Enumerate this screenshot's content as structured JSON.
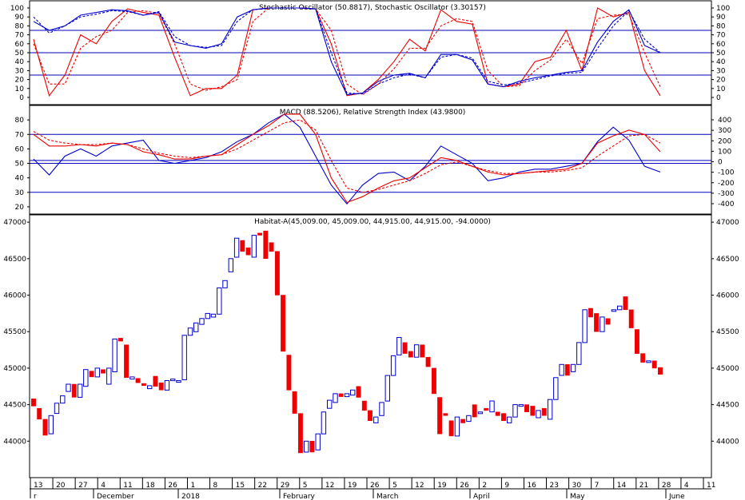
{
  "colors": {
    "up": "#0000cc",
    "down": "#ee0000",
    "grid": "#0000bb",
    "frame": "#000000"
  },
  "chart_data": [
    {
      "type": "line",
      "title": "Stochastic Oscillator (50.8817), Stochastic Oscillator (3.30157)",
      "ylim": [
        0,
        100
      ],
      "ticks": [
        0,
        10,
        20,
        30,
        40,
        50,
        60,
        70,
        80,
        90,
        100
      ],
      "hlines": [
        25,
        50,
        75
      ],
      "series": [
        {
          "color": "red",
          "style": "solid",
          "values": [
            65,
            2,
            25,
            70,
            60,
            85,
            99,
            95,
            92,
            45,
            2,
            10,
            10,
            25,
            98,
            100,
            100,
            100,
            99,
            60,
            2,
            5,
            20,
            40,
            65,
            52,
            98,
            85,
            82,
            15,
            12,
            15,
            40,
            45,
            75,
            30,
            100,
            90,
            95,
            30,
            2
          ]
        },
        {
          "color": "red",
          "style": "dashed",
          "values": [
            60,
            15,
            15,
            55,
            68,
            75,
            95,
            97,
            94,
            60,
            15,
            8,
            12,
            20,
            85,
            100,
            100,
            100,
            99,
            75,
            15,
            3,
            15,
            32,
            55,
            55,
            80,
            88,
            85,
            30,
            12,
            13,
            30,
            42,
            65,
            38,
            88,
            92,
            93,
            50,
            12
          ]
        },
        {
          "color": "blue",
          "style": "solid",
          "values": [
            85,
            75,
            80,
            92,
            95,
            98,
            97,
            92,
            95,
            62,
            58,
            55,
            60,
            90,
            98,
            100,
            100,
            100,
            99,
            40,
            3,
            5,
            18,
            25,
            27,
            22,
            48,
            48,
            42,
            15,
            12,
            18,
            22,
            25,
            28,
            30,
            62,
            85,
            98,
            58,
            50
          ]
        },
        {
          "color": "blue",
          "style": "dashed",
          "values": [
            90,
            72,
            80,
            90,
            93,
            97,
            96,
            92,
            96,
            68,
            58,
            56,
            58,
            85,
            98,
            100,
            100,
            100,
            99,
            50,
            5,
            4,
            15,
            22,
            26,
            22,
            45,
            48,
            44,
            18,
            14,
            16,
            20,
            24,
            27,
            28,
            55,
            80,
            97,
            65,
            50
          ]
        }
      ]
    },
    {
      "type": "line",
      "title": "MACD (88.5206), Relative Strength Index (43.9800)",
      "ylim": [
        15,
        90
      ],
      "ticks": [
        20,
        30,
        40,
        50,
        60,
        70,
        80
      ],
      "right_ticks": [
        400,
        300,
        200,
        100,
        0,
        -100,
        -200,
        -300,
        -400
      ],
      "hlines": [
        30,
        50,
        52,
        70
      ],
      "series": [
        {
          "color": "blue",
          "style": "solid",
          "values": [
            53,
            42,
            55,
            60,
            55,
            62,
            64,
            66,
            52,
            50,
            52,
            54,
            58,
            65,
            70,
            78,
            84,
            75,
            55,
            35,
            22,
            35,
            43,
            44,
            38,
            48,
            62,
            56,
            50,
            38,
            40,
            44,
            46,
            46,
            48,
            50,
            65,
            75,
            66,
            48,
            44
          ]
        },
        {
          "color": "red",
          "style": "solid",
          "values": [
            70,
            62,
            62,
            63,
            62,
            64,
            63,
            58,
            56,
            53,
            53,
            55,
            56,
            63,
            70,
            76,
            84,
            84,
            70,
            40,
            23,
            27,
            33,
            38,
            40,
            47,
            54,
            52,
            48,
            44,
            42,
            43,
            44,
            45,
            46,
            50,
            64,
            69,
            73,
            70,
            58
          ]
        },
        {
          "color": "red",
          "style": "dashed",
          "values": [
            72,
            66,
            64,
            63,
            63,
            64,
            63,
            60,
            57,
            55,
            54,
            55,
            56,
            60,
            66,
            72,
            78,
            80,
            73,
            52,
            33,
            30,
            32,
            35,
            38,
            43,
            49,
            51,
            48,
            45,
            43,
            43,
            44,
            44,
            45,
            47,
            55,
            62,
            69,
            70,
            64
          ]
        }
      ]
    },
    {
      "type": "candlestick",
      "title": "Habitat-A(45,009.00, 45,009.00, 44,915.00, 44,915.00, -94.0000)",
      "ylim": [
        43500,
        47100
      ],
      "ticks": [
        44000,
        44500,
        45000,
        45500,
        46000,
        46500,
        47000
      ],
      "candles": [
        {
          "o": 44580,
          "c": 44480
        },
        {
          "o": 44450,
          "c": 44300
        },
        {
          "o": 44300,
          "c": 44080
        },
        {
          "o": 44100,
          "c": 44350
        },
        {
          "o": 44380,
          "c": 44520
        },
        {
          "o": 44520,
          "c": 44620
        },
        {
          "o": 44680,
          "c": 44780
        },
        {
          "o": 44780,
          "c": 44600
        },
        {
          "o": 44600,
          "c": 44780
        },
        {
          "o": 44750,
          "c": 44980
        },
        {
          "o": 44960,
          "c": 44880
        },
        {
          "o": 44880,
          "c": 45000
        },
        {
          "o": 44980,
          "c": 44930
        },
        {
          "o": 44780,
          "c": 45000
        },
        {
          "o": 44950,
          "c": 45400
        },
        {
          "o": 45410,
          "c": 45370
        },
        {
          "o": 45320,
          "c": 44870
        },
        {
          "o": 44850,
          "c": 44880
        },
        {
          "o": 44860,
          "c": 44800
        },
        {
          "o": 44790,
          "c": 44760
        },
        {
          "o": 44720,
          "c": 44760
        },
        {
          "o": 44890,
          "c": 44750
        },
        {
          "o": 44800,
          "c": 44700
        },
        {
          "o": 44700,
          "c": 44830
        },
        {
          "o": 44830,
          "c": 44850
        },
        {
          "o": 44830,
          "c": 44830
        },
        {
          "o": 44840,
          "c": 45450
        },
        {
          "o": 45450,
          "c": 45550
        },
        {
          "o": 45500,
          "c": 45620
        },
        {
          "o": 45600,
          "c": 45680
        },
        {
          "o": 45680,
          "c": 45750
        },
        {
          "o": 45700,
          "c": 45740
        },
        {
          "o": 45740,
          "c": 46100
        },
        {
          "o": 46100,
          "c": 46200
        },
        {
          "o": 46320,
          "c": 46500
        },
        {
          "o": 46520,
          "c": 46780
        },
        {
          "o": 46750,
          "c": 46600
        },
        {
          "o": 46650,
          "c": 46550
        },
        {
          "o": 46520,
          "c": 46820
        },
        {
          "o": 46850,
          "c": 46820
        },
        {
          "o": 46880,
          "c": 46500
        },
        {
          "o": 46720,
          "c": 46600
        },
        {
          "o": 46600,
          "c": 46000
        },
        {
          "o": 46000,
          "c": 45230
        },
        {
          "o": 45180,
          "c": 44700
        },
        {
          "o": 44680,
          "c": 44380
        },
        {
          "o": 44380,
          "c": 43840
        },
        {
          "o": 43850,
          "c": 44000
        },
        {
          "o": 44000,
          "c": 43850
        },
        {
          "o": 43880,
          "c": 44100
        },
        {
          "o": 44100,
          "c": 44400
        },
        {
          "o": 44450,
          "c": 44560
        },
        {
          "o": 44530,
          "c": 44650
        },
        {
          "o": 44650,
          "c": 44610
        },
        {
          "o": 44610,
          "c": 44650
        },
        {
          "o": 44630,
          "c": 44700
        },
        {
          "o": 44750,
          "c": 44600
        },
        {
          "o": 44550,
          "c": 44420
        },
        {
          "o": 44420,
          "c": 44280
        },
        {
          "o": 44250,
          "c": 44330
        },
        {
          "o": 44350,
          "c": 44530
        },
        {
          "o": 44550,
          "c": 44900
        },
        {
          "o": 44900,
          "c": 45170
        },
        {
          "o": 45180,
          "c": 45420
        },
        {
          "o": 45350,
          "c": 45200
        },
        {
          "o": 45230,
          "c": 45150
        },
        {
          "o": 45150,
          "c": 45320
        },
        {
          "o": 45320,
          "c": 45150
        },
        {
          "o": 45150,
          "c": 45020
        },
        {
          "o": 45000,
          "c": 44650
        },
        {
          "o": 44600,
          "c": 44100
        },
        {
          "o": 44380,
          "c": 44350
        },
        {
          "o": 44280,
          "c": 44070
        },
        {
          "o": 44070,
          "c": 44330
        },
        {
          "o": 44300,
          "c": 44250
        },
        {
          "o": 44270,
          "c": 44350
        },
        {
          "o": 44500,
          "c": 44330
        },
        {
          "o": 44380,
          "c": 44400
        },
        {
          "o": 44450,
          "c": 44420
        },
        {
          "o": 44400,
          "c": 44550
        },
        {
          "o": 44400,
          "c": 44350
        },
        {
          "o": 44380,
          "c": 44280
        },
        {
          "o": 44250,
          "c": 44330
        },
        {
          "o": 44330,
          "c": 44500
        },
        {
          "o": 44480,
          "c": 44500
        },
        {
          "o": 44500,
          "c": 44400
        },
        {
          "o": 44480,
          "c": 44350
        },
        {
          "o": 44320,
          "c": 44420
        },
        {
          "o": 44450,
          "c": 44350
        },
        {
          "o": 44300,
          "c": 44570
        },
        {
          "o": 44570,
          "c": 44870
        },
        {
          "o": 44900,
          "c": 45050
        },
        {
          "o": 45050,
          "c": 44900
        },
        {
          "o": 44950,
          "c": 45050
        },
        {
          "o": 45050,
          "c": 45350
        },
        {
          "o": 45350,
          "c": 45800
        },
        {
          "o": 45820,
          "c": 45700
        },
        {
          "o": 45750,
          "c": 45500
        },
        {
          "o": 45500,
          "c": 45700
        },
        {
          "o": 45680,
          "c": 45600
        },
        {
          "o": 45800,
          "c": 45800
        },
        {
          "o": 45800,
          "c": 45850
        },
        {
          "o": 45980,
          "c": 45800
        },
        {
          "o": 45800,
          "c": 45550
        },
        {
          "o": 45530,
          "c": 45200
        },
        {
          "o": 45200,
          "c": 45080
        },
        {
          "o": 45080,
          "c": 45100
        },
        {
          "o": 45100,
          "c": 45000
        },
        {
          "o": 45009,
          "c": 44915
        }
      ]
    }
  ],
  "x_axis": {
    "day_labels": [
      "13",
      "20",
      "27",
      "4",
      "11",
      "18",
      "26",
      "1",
      "8",
      "15",
      "22",
      "29",
      "5",
      "12",
      "19",
      "26",
      "5",
      "12",
      "19",
      "26",
      "2",
      "9",
      "16",
      "23",
      "30",
      "7",
      "14",
      "21",
      "28",
      "4",
      "11"
    ],
    "month_labels": [
      "r",
      "December",
      "2018",
      "February",
      "March",
      "April",
      "May",
      "June"
    ]
  }
}
